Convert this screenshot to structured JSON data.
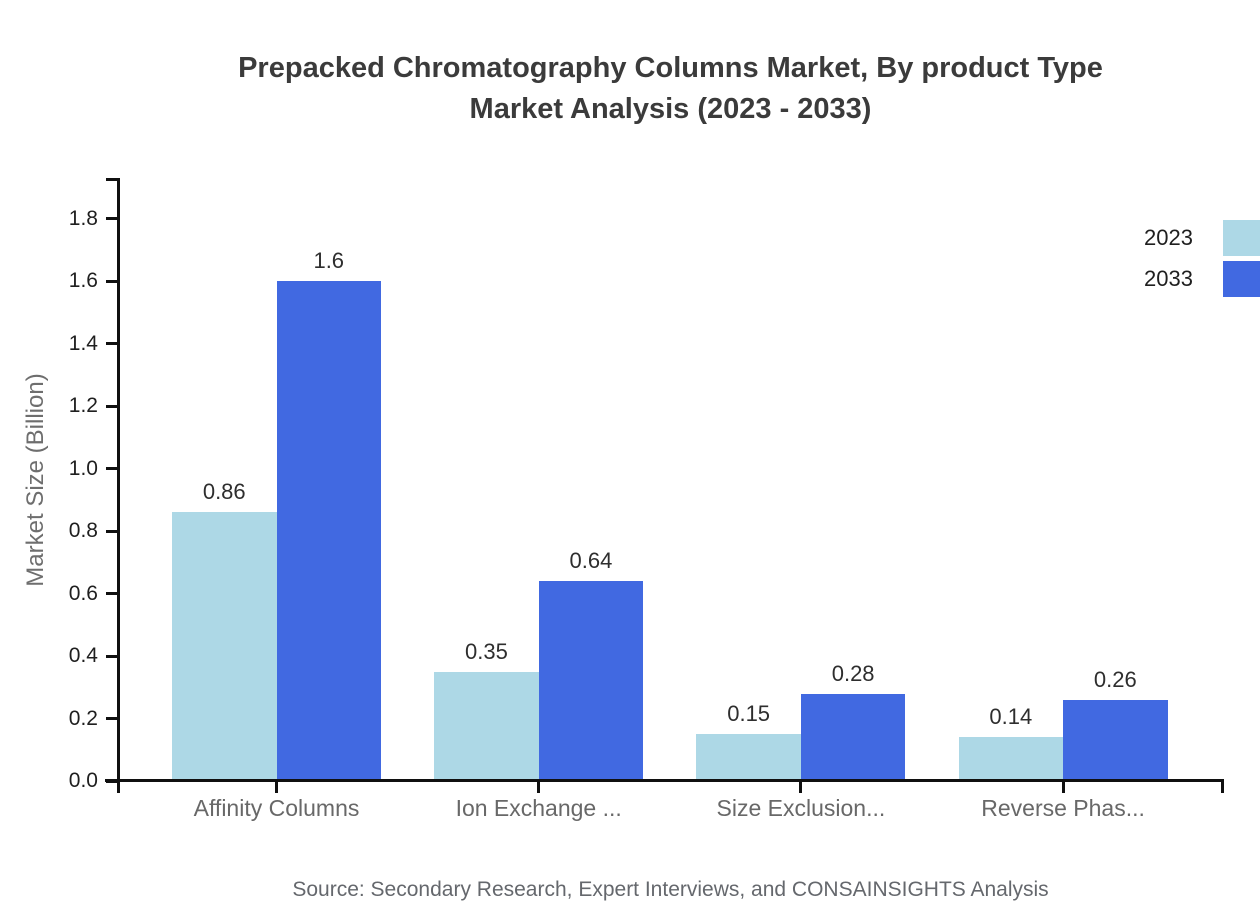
{
  "title": "Prepacked Chromatography Columns Market, By product Type Market Analysis (2023 - 2033)",
  "title_lines": [
    "Prepacked Chromatography Columns Market, By product Type",
    "Market Analysis (2023 - 2033)"
  ],
  "source": "Source: Secondary Research, Expert Interviews, and CONSAINSIGHTS Analysis",
  "colors": {
    "series_2023": "#ADD8E6",
    "series_2033": "#4169E1",
    "axis": "#101010",
    "title_text": "#3b3b3b",
    "category_text": "#686868",
    "source_text": "#65686d"
  },
  "chart_data": {
    "type": "bar",
    "title": "Prepacked Chromatography Columns Market, By product Type Market Analysis (2023 - 2033)",
    "xlabel": "",
    "ylabel": "Market Size (Billion)",
    "categories": [
      "Affinity Columns",
      "Ion Exchange ...",
      "Size Exclusion...",
      "Reverse Phas..."
    ],
    "series": [
      {
        "name": "2023",
        "color": "#ADD8E6",
        "values": [
          0.86,
          0.35,
          0.15,
          0.14
        ],
        "value_labels": [
          "0.86",
          "0.35",
          "0.15",
          "0.14"
        ]
      },
      {
        "name": "2033",
        "color": "#4169E1",
        "values": [
          1.6,
          0.64,
          0.28,
          0.26
        ],
        "value_labels": [
          "1.6",
          "0.64",
          "0.28",
          "0.26"
        ]
      }
    ],
    "yticks": [
      0.0,
      0.2,
      0.4,
      0.6,
      0.8,
      1.0,
      1.2,
      1.4,
      1.6,
      1.8
    ],
    "ytick_labels": [
      "0.0",
      "0.2",
      "0.4",
      "0.6",
      "0.8",
      "1.0",
      "1.2",
      "1.4",
      "1.6",
      "1.8"
    ],
    "ylim": [
      0,
      1.92
    ],
    "grid": false,
    "legend_position": "top-right",
    "value_labels_shown": true
  }
}
